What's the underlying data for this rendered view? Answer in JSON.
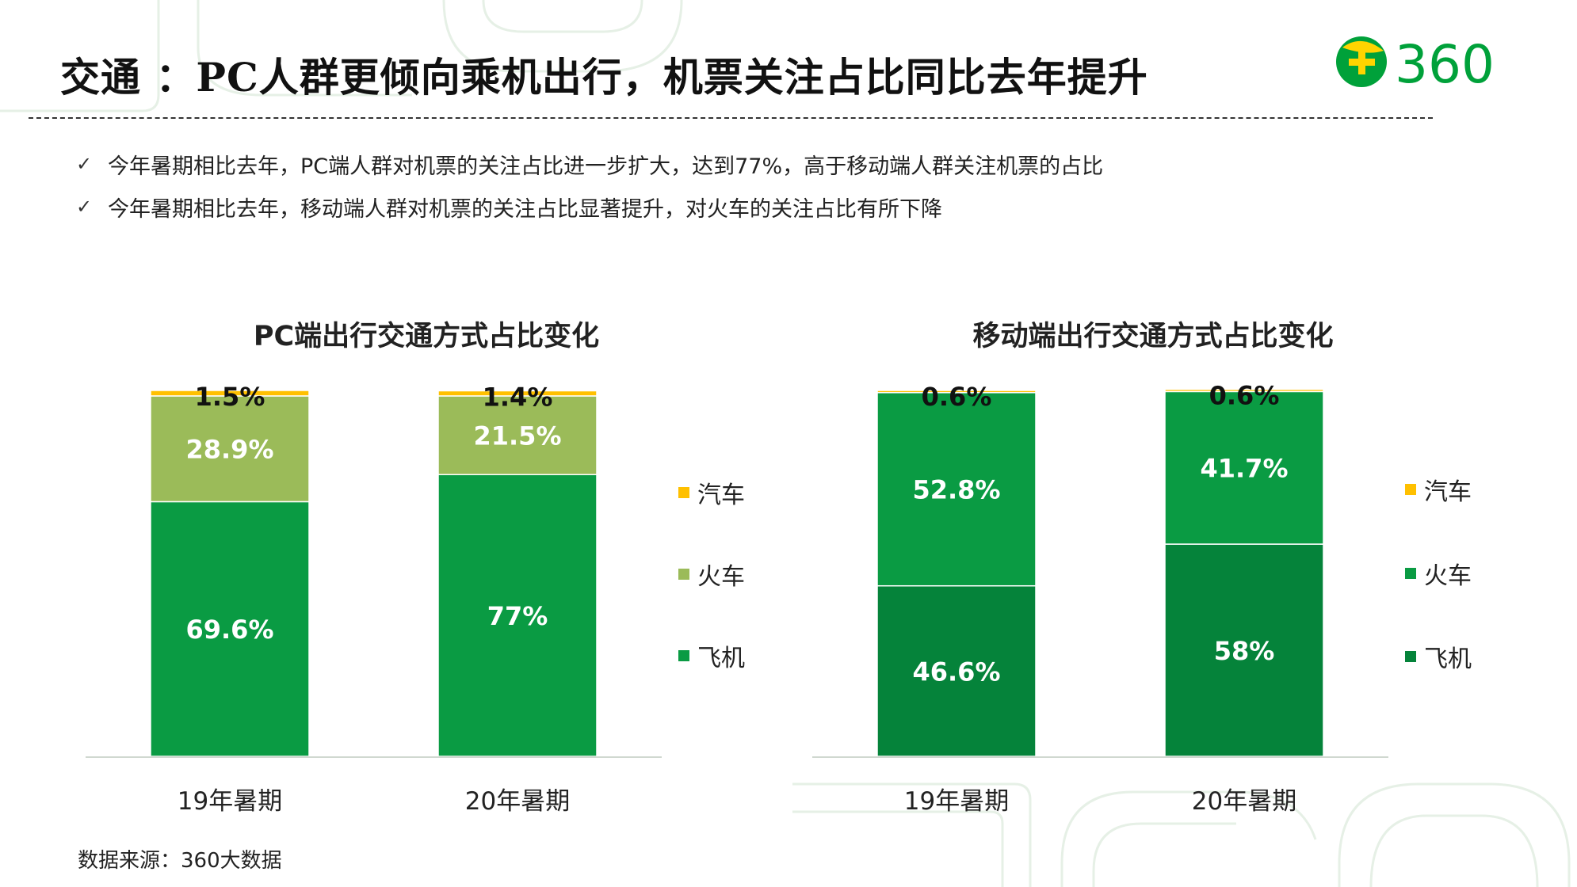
{
  "title": "交通 ：PC人群更倾向乘机出行，机票关注占比同比去年提升",
  "logo": {
    "text": "360",
    "plus_icon": "plus-circle-icon"
  },
  "bullets": [
    "今年暑期相比去年，PC端人群对机票的关注占比进一步扩大，达到77%，高于移动端人群关注机票的占比",
    "今年暑期相比去年，移动端人群对机票的关注占比显著提升，对火车的关注占比有所下降"
  ],
  "check_icon": "✓",
  "source": "数据来源：360大数据",
  "chart_data": [
    {
      "type": "bar",
      "stacked": true,
      "title": "PC端出行交通方式占比变化",
      "categories": [
        "19年暑期",
        "20年暑期"
      ],
      "series": [
        {
          "name": "飞机",
          "values": [
            69.6,
            77
          ],
          "labels": [
            "69.6%",
            "77%"
          ],
          "color": "#0a9b43"
        },
        {
          "name": "火车",
          "values": [
            28.9,
            21.5
          ],
          "labels": [
            "28.9%",
            "21.5%"
          ],
          "color": "#9bbb59"
        },
        {
          "name": "汽车",
          "values": [
            1.5,
            1.4
          ],
          "labels": [
            "1.5%",
            "1.4%"
          ],
          "color": "#ffc000"
        }
      ],
      "ylim": [
        0,
        100
      ],
      "legend": "right",
      "grid": false
    },
    {
      "type": "bar",
      "stacked": true,
      "title": "移动端出行交通方式占比变化",
      "categories": [
        "19年暑期",
        "20年暑期"
      ],
      "series": [
        {
          "name": "飞机",
          "values": [
            46.6,
            58
          ],
          "labels": [
            "46.6%",
            "58%"
          ],
          "color": "#05833a"
        },
        {
          "name": "火车",
          "values": [
            52.8,
            41.7
          ],
          "labels": [
            "52.8%",
            "41.7%"
          ],
          "color": "#0a9b43"
        },
        {
          "name": "汽车",
          "values": [
            0.6,
            0.6
          ],
          "labels": [
            "0.6%",
            "0.6%"
          ],
          "color": "#ffc000"
        }
      ],
      "ylim": [
        0,
        100
      ],
      "legend": "right",
      "grid": false
    }
  ]
}
